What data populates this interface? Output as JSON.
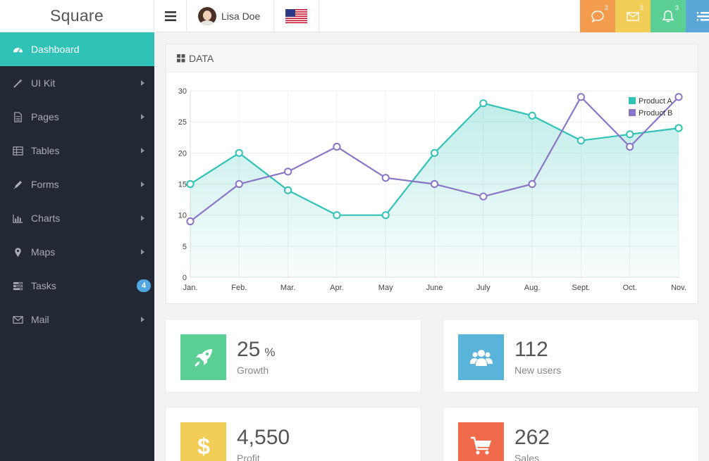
{
  "brand": "Square",
  "header": {
    "user_name": "Lisa Doe",
    "notifications": {
      "messages": "2",
      "mail": "3",
      "alerts": "3"
    },
    "colors": {
      "messages": "#f39c4f",
      "mail": "#f2cd57",
      "alerts": "#5ccf94",
      "menu": "#5aa7d8"
    }
  },
  "sidebar": {
    "items": [
      {
        "label": "Dashboard",
        "icon": "dashboard-icon",
        "active": true
      },
      {
        "label": "UI Kit",
        "icon": "magic-wand-icon",
        "submenu": true
      },
      {
        "label": "Pages",
        "icon": "file-icon",
        "submenu": true
      },
      {
        "label": "Tables",
        "icon": "table-icon",
        "submenu": true
      },
      {
        "label": "Forms",
        "icon": "pencil-icon",
        "submenu": true
      },
      {
        "label": "Charts",
        "icon": "bar-chart-icon",
        "submenu": true
      },
      {
        "label": "Maps",
        "icon": "map-marker-icon",
        "submenu": true
      },
      {
        "label": "Tasks",
        "icon": "tasks-icon",
        "badge": "4"
      },
      {
        "label": "Mail",
        "icon": "envelope-icon",
        "submenu": true
      }
    ]
  },
  "panel": {
    "title": "DATA"
  },
  "chart_data": {
    "type": "line",
    "categories": [
      "Jan.",
      "Feb.",
      "Mar.",
      "Apr.",
      "May",
      "June",
      "July",
      "Aug.",
      "Sept.",
      "Oct.",
      "Nov."
    ],
    "ylim": [
      0,
      30
    ],
    "yticks": [
      0,
      5,
      10,
      15,
      20,
      25,
      30
    ],
    "legend_position": "top-right",
    "series": [
      {
        "name": "Product A",
        "color": "#30c2b7",
        "fill": true,
        "values": [
          15,
          20,
          14,
          10,
          10,
          20,
          28,
          26,
          22,
          23,
          24
        ]
      },
      {
        "name": "Product B",
        "color": "#8a75c8",
        "fill": false,
        "values": [
          9,
          15,
          17,
          21,
          16,
          15,
          13,
          15,
          29,
          21,
          29
        ]
      }
    ]
  },
  "stats": [
    {
      "value": "25",
      "unit": "%",
      "label": "Growth",
      "color": "#5ccf94",
      "icon": "rocket-icon"
    },
    {
      "value": "112",
      "unit": "",
      "label": "New users",
      "color": "#5ab3d9",
      "icon": "users-icon"
    },
    {
      "value": "4,550",
      "unit": "",
      "label": "Profit",
      "color": "#f2cd57",
      "icon": "dollar-icon"
    },
    {
      "value": "262",
      "unit": "",
      "label": "Sales",
      "color": "#ef6b4b",
      "icon": "shopping-cart-icon"
    }
  ]
}
